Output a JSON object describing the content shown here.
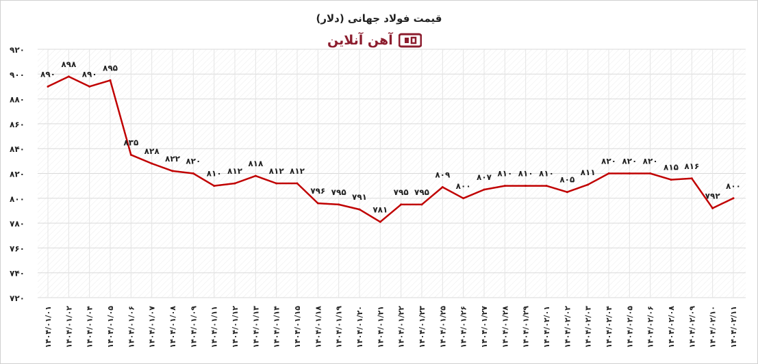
{
  "colors": {
    "line": "#c00000",
    "grid": "#d9d9d9",
    "text": "#222222",
    "brand": "#8c1d2e"
  },
  "brand": {
    "name": "آهن آنلاین",
    "icon": "ahan-online-logo-icon"
  },
  "chart_data": {
    "type": "line",
    "title": "قیمت فولاد جهانی (دلار)",
    "xlabel": "",
    "ylabel": "",
    "ylim": [
      720,
      920
    ],
    "yticks": [
      "۷۲۰",
      "۷۴۰",
      "۷۶۰",
      "۷۸۰",
      "۸۰۰",
      "۸۲۰",
      "۸۴۰",
      "۸۶۰",
      "۸۸۰",
      "۹۰۰",
      "۹۲۰"
    ],
    "grid": true,
    "legend": "none",
    "categories": [
      "۱۴۰۴/۰۱/۰۱",
      "۱۴۰۴/۰۱/۰۲",
      "۱۴۰۴/۰۱/۰۴",
      "۱۴۰۴/۰۱/۰۵",
      "۱۴۰۴/۰۱/۰۶",
      "۱۴۰۴/۰۱/۰۷",
      "۱۴۰۴/۰۱/۰۸",
      "۱۴۰۴/۰۱/۰۹",
      "۱۴۰۴/۰۱/۱۱",
      "۱۴۰۴/۰۱/۱۲",
      "۱۴۰۴/۰۱/۱۳",
      "۱۴۰۴/۰۱/۱۴",
      "۱۴۰۴/۰۱/۱۵",
      "۱۴۰۴/۰۱/۱۸",
      "۱۴۰۴/۰۱/۱۹",
      "۱۴۰۴/۰۱/۲۰",
      "۱۴۰۴/۰۱/۲۱",
      "۱۴۰۴/۰۱/۲۲",
      "۱۴۰۴/۰۱/۲۳",
      "۱۴۰۴/۰۱/۲۵",
      "۱۴۰۴/۰۱/۲۶",
      "۱۴۰۴/۰۱/۲۷",
      "۱۴۰۴/۰۱/۲۸",
      "۱۴۰۴/۰۱/۲۹",
      "۱۴۰۴/۰۲/۰۱",
      "۱۴۰۴/۰۲/۰۲",
      "۱۴۰۴/۰۲/۰۳",
      "۱۴۰۴/۰۲/۰۴",
      "۱۴۰۴/۰۲/۰۵",
      "۱۴۰۴/۰۲/۰۶",
      "۱۴۰۴/۰۲/۰۸",
      "۱۴۰۴/۰۲/۰۹",
      "۱۴۰۴/۰۲/۱۰",
      "۱۴۰۴/۰۲/۱۱"
    ],
    "values": [
      890,
      898,
      890,
      895,
      835,
      828,
      822,
      820,
      810,
      812,
      818,
      812,
      812,
      796,
      795,
      791,
      781,
      795,
      795,
      809,
      800,
      807,
      810,
      810,
      810,
      805,
      811,
      820,
      820,
      820,
      815,
      816,
      792,
      800
    ],
    "value_labels": [
      "۸۹۰",
      "۸۹۸",
      "۸۹۰",
      "۸۹۵",
      "۸۳۵",
      "۸۲۸",
      "۸۲۲",
      "۸۲۰",
      "۸۱۰",
      "۸۱۲",
      "۸۱۸",
      "۸۱۲",
      "۸۱۲",
      "۷۹۶",
      "۷۹۵",
      "۷۹۱",
      "۷۸۱",
      "۷۹۵",
      "۷۹۵",
      "۸۰۹",
      "۸۰۰",
      "۸۰۷",
      "۸۱۰",
      "۸۱۰",
      "۸۱۰",
      "۸۰۵",
      "۸۱۱",
      "۸۲۰",
      "۸۲۰",
      "۸۲۰",
      "۸۱۵",
      "۸۱۶",
      "۷۹۲",
      "۸۰۰"
    ]
  }
}
